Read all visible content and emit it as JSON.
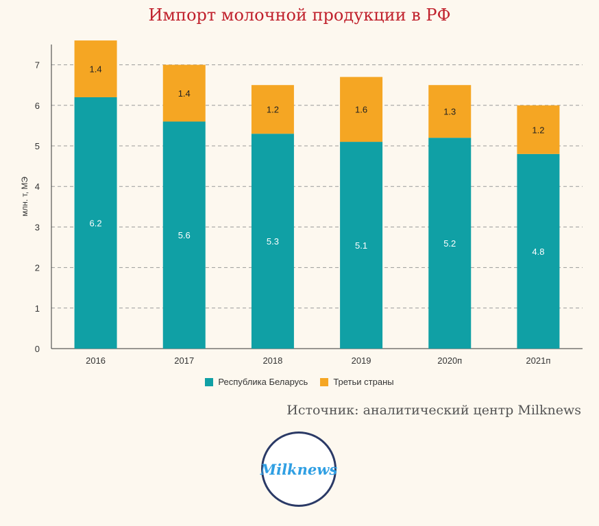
{
  "colors": {
    "belarus": "#10a0a5",
    "third": "#f5a623",
    "title": "#c0212c",
    "grid": "#9a9a9a",
    "axis": "#333333"
  },
  "source": "Источник: аналитический центр Milknews",
  "logo": {
    "text": "Milknews"
  },
  "chart_data": {
    "type": "bar",
    "stacked": true,
    "title": "Импорт молочной продукции в РФ",
    "xlabel": "",
    "ylabel": "млн. т, МЭ",
    "ylim": [
      0,
      7.5
    ],
    "yticks": [
      0,
      1,
      2,
      3,
      4,
      5,
      6,
      7
    ],
    "categories": [
      "2016",
      "2017",
      "2018",
      "2019",
      "2020п",
      "2021п"
    ],
    "series": [
      {
        "name": "Республика Беларусь",
        "color": "#10a0a5",
        "values": [
          6.2,
          5.6,
          5.3,
          5.1,
          5.2,
          4.8
        ]
      },
      {
        "name": "Третьи страны",
        "color": "#f5a623",
        "values": [
          1.4,
          1.4,
          1.2,
          1.6,
          1.3,
          1.2
        ]
      }
    ],
    "data_labels": true,
    "grid": "horizontal-dashed",
    "legend": "bottom-center"
  }
}
